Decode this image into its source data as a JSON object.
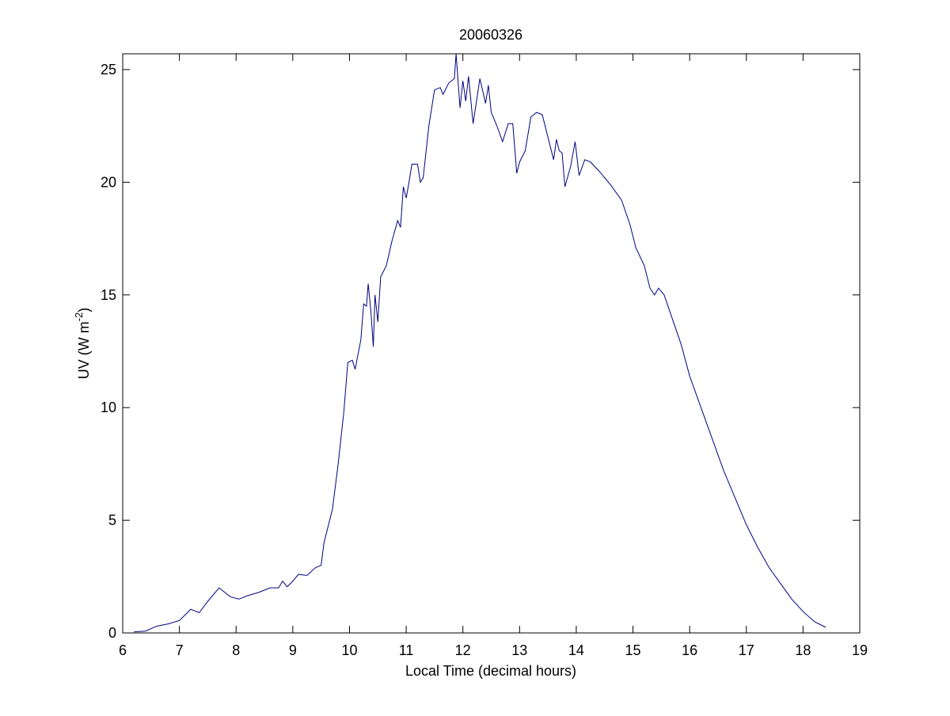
{
  "chart_data": {
    "type": "line",
    "title": "20060326",
    "xlabel": "Local Time (decimal hours)",
    "ylabel": [
      "UV (W m",
      "-2",
      ")"
    ],
    "xlim": [
      6,
      19
    ],
    "ylim": [
      0,
      25.7
    ],
    "xticks": [
      6,
      7,
      8,
      9,
      10,
      11,
      12,
      13,
      14,
      15,
      16,
      17,
      18,
      19
    ],
    "yticks": [
      0,
      5,
      10,
      15,
      20,
      25
    ],
    "x": [
      6.2,
      6.4,
      6.6,
      6.8,
      7.0,
      7.2,
      7.35,
      7.5,
      7.7,
      7.9,
      8.05,
      8.2,
      8.4,
      8.6,
      8.75,
      8.82,
      8.9,
      9.0,
      9.1,
      9.25,
      9.4,
      9.5,
      9.55,
      9.7,
      9.8,
      9.9,
      9.97,
      10.05,
      10.1,
      10.2,
      10.25,
      10.3,
      10.33,
      10.38,
      10.42,
      10.45,
      10.5,
      10.55,
      10.65,
      10.75,
      10.85,
      10.9,
      10.95,
      11.0,
      11.05,
      11.1,
      11.2,
      11.25,
      11.3,
      11.4,
      11.5,
      11.6,
      11.65,
      11.75,
      11.85,
      11.88,
      11.95,
      12.0,
      12.05,
      12.1,
      12.18,
      12.3,
      12.4,
      12.45,
      12.5,
      12.6,
      12.7,
      12.8,
      12.88,
      12.95,
      13.0,
      13.1,
      13.2,
      13.3,
      13.4,
      13.5,
      13.6,
      13.65,
      13.7,
      13.75,
      13.8,
      13.9,
      13.98,
      14.05,
      14.15,
      14.25,
      14.4,
      14.6,
      14.8,
      14.95,
      15.05,
      15.2,
      15.3,
      15.38,
      15.45,
      15.55,
      15.7,
      15.85,
      16.0,
      16.2,
      16.4,
      16.6,
      16.8,
      17.0,
      17.2,
      17.4,
      17.6,
      17.8,
      18.0,
      18.2,
      18.4
    ],
    "series": [
      {
        "color": "#000080",
        "values": [
          0.05,
          0.08,
          0.3,
          0.4,
          0.55,
          1.05,
          0.9,
          1.4,
          2.0,
          1.6,
          1.5,
          1.65,
          1.8,
          2.0,
          2.0,
          2.3,
          2.05,
          2.3,
          2.6,
          2.55,
          2.9,
          3.0,
          4.0,
          5.5,
          7.5,
          9.8,
          12.0,
          12.1,
          11.7,
          13.0,
          14.6,
          14.5,
          15.5,
          14.2,
          12.7,
          15.0,
          13.8,
          15.8,
          16.3,
          17.4,
          18.3,
          18.0,
          19.8,
          19.3,
          20.0,
          20.8,
          20.8,
          20.0,
          20.2,
          22.5,
          24.1,
          24.2,
          23.9,
          24.4,
          24.6,
          25.7,
          23.3,
          24.5,
          23.6,
          24.7,
          22.6,
          24.6,
          23.5,
          24.3,
          23.1,
          22.5,
          21.8,
          22.6,
          22.6,
          20.4,
          20.9,
          21.4,
          22.9,
          23.1,
          23.0,
          22.0,
          21.0,
          21.9,
          21.4,
          21.3,
          19.8,
          20.7,
          21.8,
          20.3,
          21.0,
          20.9,
          20.5,
          19.9,
          19.2,
          18.1,
          17.1,
          16.3,
          15.3,
          15.0,
          15.3,
          15.0,
          13.9,
          12.8,
          11.4,
          10.0,
          8.6,
          7.2,
          6.0,
          4.8,
          3.8,
          2.9,
          2.2,
          1.5,
          0.95,
          0.5,
          0.25
        ]
      }
    ]
  }
}
